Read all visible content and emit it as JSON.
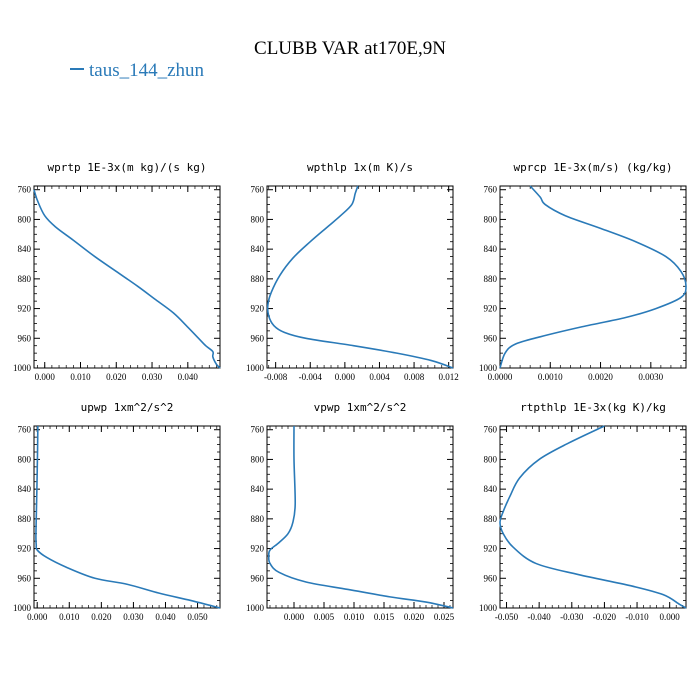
{
  "figure": {
    "title": "CLUBB VAR at170E,9N",
    "legend_label": "taus_144_zhun",
    "line_color": "#2a7ab8"
  },
  "chart_data": [
    {
      "type": "line",
      "title": "wprtp  1E-3x(m kg)/(s kg)",
      "xlim": [
        -0.003,
        0.049
      ],
      "ylim": [
        1000,
        755
      ],
      "ylabel_values": [
        760,
        800,
        840,
        880,
        920,
        960,
        1000
      ],
      "xticks": [
        0.0,
        0.01,
        0.02,
        0.03,
        0.04
      ],
      "xtick_labels": [
        "0.000",
        "0.010",
        "0.020",
        "0.030",
        "0.040"
      ],
      "x": [
        -0.003,
        -0.002,
        0.0,
        0.003,
        0.008,
        0.014,
        0.02,
        0.026,
        0.031,
        0.036,
        0.04,
        0.043,
        0.045,
        0.047,
        0.047,
        0.048,
        0.049
      ],
      "y": [
        760,
        775,
        795,
        810,
        828,
        850,
        870,
        890,
        908,
        926,
        945,
        960,
        970,
        978,
        985,
        995,
        1000
      ]
    },
    {
      "type": "line",
      "title": "wpthlp  1x(m K)/s",
      "xlim": [
        -0.009,
        0.0125
      ],
      "ylim": [
        1000,
        755
      ],
      "ylabel_values": [
        760,
        800,
        840,
        880,
        920,
        960,
        1000
      ],
      "xticks": [
        -0.008,
        -0.004,
        0.0,
        0.004,
        0.008,
        0.012
      ],
      "xtick_labels": [
        "-0.008",
        "-0.004",
        "0.000",
        "0.004",
        "0.008",
        "0.012"
      ],
      "x": [
        0.0015,
        0.0012,
        0.0008,
        -0.0005,
        -0.002,
        -0.004,
        -0.006,
        -0.0075,
        -0.0085,
        -0.0089,
        -0.0088,
        -0.0082,
        -0.007,
        -0.0045,
        0.001,
        0.006,
        0.01,
        0.0125
      ],
      "y": [
        755,
        765,
        780,
        795,
        810,
        830,
        852,
        875,
        898,
        915,
        930,
        943,
        952,
        960,
        970,
        980,
        990,
        1000
      ]
    },
    {
      "type": "line",
      "title": "wprcp  1E-3x(m/s) (kg/kg)",
      "xlim": [
        0.0,
        0.0037
      ],
      "ylim": [
        1000,
        755
      ],
      "ylabel_values": [
        760,
        800,
        840,
        880,
        920,
        960,
        1000
      ],
      "xticks": [
        0.0,
        0.001,
        0.002,
        0.003
      ],
      "xtick_labels": [
        "0.0000",
        "0.0010",
        "0.0020",
        "0.0030"
      ],
      "x": [
        0.0006,
        0.0008,
        0.0009,
        0.0013,
        0.002,
        0.0027,
        0.0033,
        0.0036,
        0.0037,
        0.0036,
        0.0031,
        0.0025,
        0.0016,
        0.0008,
        0.0003,
        0.0001,
        0.0
      ],
      "y": [
        755,
        770,
        780,
        795,
        812,
        830,
        850,
        870,
        890,
        905,
        920,
        932,
        945,
        958,
        968,
        980,
        1000
      ]
    },
    {
      "type": "line",
      "title": "upwp  1xm^2/s^2",
      "xlim": [
        -0.001,
        0.057
      ],
      "ylim": [
        1000,
        755
      ],
      "ylabel_values": [
        760,
        800,
        840,
        880,
        920,
        960,
        1000
      ],
      "xticks": [
        0.0,
        0.01,
        0.02,
        0.03,
        0.04,
        0.05
      ],
      "xtick_labels": [
        "0.000",
        "0.010",
        "0.020",
        "0.030",
        "0.040",
        "0.050"
      ],
      "x": [
        0.0002,
        0.0001,
        -0.0001,
        -0.0003,
        -0.0004,
        -0.0003,
        0.0,
        0.003,
        0.009,
        0.018,
        0.028,
        0.038,
        0.048,
        0.057
      ],
      "y": [
        755,
        790,
        840,
        880,
        905,
        915,
        922,
        932,
        945,
        960,
        968,
        980,
        990,
        1000
      ]
    },
    {
      "type": "line",
      "title": "vpwp  1xm^2/s^2",
      "xlim": [
        -0.0045,
        0.0265
      ],
      "ylim": [
        1000,
        755
      ],
      "ylabel_values": [
        760,
        800,
        840,
        880,
        920,
        960,
        1000
      ],
      "xticks": [
        0.0,
        0.005,
        0.01,
        0.015,
        0.02,
        0.025
      ],
      "xtick_labels": [
        "0.000",
        "0.005",
        "0.010",
        "0.015",
        "0.020",
        "0.025"
      ],
      "x": [
        0.0,
        0.0,
        0.0002,
        -0.0002,
        -0.001,
        -0.0025,
        -0.004,
        -0.0042,
        -0.004,
        -0.0025,
        0.002,
        0.009,
        0.016,
        0.022,
        0.0265
      ],
      "y": [
        755,
        800,
        860,
        885,
        900,
        912,
        922,
        930,
        940,
        952,
        965,
        975,
        985,
        992,
        1000
      ]
    },
    {
      "type": "line",
      "title": "rtpthlp  1E-3x(kg K)/kg",
      "xlim": [
        -0.052,
        0.005
      ],
      "ylim": [
        1000,
        755
      ],
      "ylabel_values": [
        760,
        800,
        840,
        880,
        920,
        960,
        1000
      ],
      "xticks": [
        -0.05,
        -0.04,
        -0.03,
        -0.02,
        -0.01,
        0.0
      ],
      "xtick_labels": [
        "-0.050",
        "-0.040",
        "-0.030",
        "-0.020",
        "-0.010",
        "0.000"
      ],
      "x": [
        -0.02,
        -0.031,
        -0.04,
        -0.046,
        -0.049,
        -0.051,
        -0.052,
        -0.051,
        -0.048,
        -0.041,
        -0.028,
        -0.012,
        -0.002,
        0.003,
        0.005
      ],
      "y": [
        755,
        778,
        800,
        825,
        850,
        870,
        885,
        900,
        918,
        940,
        955,
        970,
        982,
        995,
        1000
      ]
    }
  ]
}
